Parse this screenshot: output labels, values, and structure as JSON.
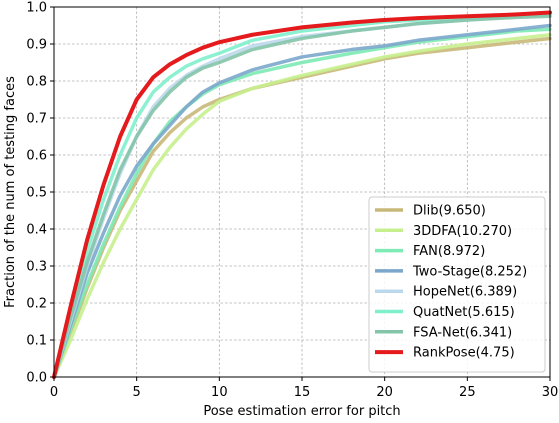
{
  "chart_data": {
    "type": "line",
    "title": "",
    "xlabel": "Pose estimation error for pitch",
    "ylabel": "Fraction of the num of testing faces",
    "xlim": [
      0,
      30
    ],
    "ylim": [
      0,
      1.0
    ],
    "xticks": [
      0,
      5,
      10,
      15,
      20,
      25,
      30
    ],
    "xtick_labels": [
      "0",
      "5",
      "10",
      "15",
      "20",
      "25",
      "30"
    ],
    "yticks": [
      0,
      0.1,
      0.2,
      0.3,
      0.4,
      0.5,
      0.6,
      0.7,
      0.8,
      0.9,
      1.0
    ],
    "ytick_labels": [
      "0.0",
      "0.1",
      "0.2",
      "0.3",
      "0.4",
      "0.5",
      "0.6",
      "0.7",
      "0.8",
      "0.9",
      "1.0"
    ],
    "grid": true,
    "legend_position": "lower-right",
    "x": [
      0,
      1,
      2,
      3,
      4,
      5,
      6,
      7,
      8,
      9,
      10,
      12,
      15,
      18,
      20,
      22,
      25,
      28,
      30
    ],
    "series": [
      {
        "name": "Dlib(9.650)",
        "color": "#c8b878",
        "values": [
          0,
          0.12,
          0.24,
          0.35,
          0.45,
          0.53,
          0.61,
          0.66,
          0.7,
          0.73,
          0.75,
          0.78,
          0.81,
          0.84,
          0.86,
          0.875,
          0.89,
          0.905,
          0.915
        ]
      },
      {
        "name": "3DDFA(10.270)",
        "color": "#c6f08e",
        "values": [
          0,
          0.1,
          0.21,
          0.31,
          0.4,
          0.48,
          0.56,
          0.62,
          0.67,
          0.71,
          0.745,
          0.78,
          0.815,
          0.845,
          0.865,
          0.88,
          0.9,
          0.915,
          0.925
        ]
      },
      {
        "name": "FAN(8.972)",
        "color": "#7eeab4",
        "values": [
          0,
          0.13,
          0.25,
          0.36,
          0.46,
          0.55,
          0.63,
          0.69,
          0.73,
          0.765,
          0.79,
          0.82,
          0.85,
          0.875,
          0.89,
          0.905,
          0.92,
          0.935,
          0.94
        ]
      },
      {
        "name": "Two-Stage(8.252)",
        "color": "#7ba7cc",
        "values": [
          0,
          0.14,
          0.28,
          0.39,
          0.49,
          0.57,
          0.63,
          0.68,
          0.73,
          0.77,
          0.795,
          0.83,
          0.865,
          0.885,
          0.895,
          0.91,
          0.925,
          0.94,
          0.95
        ]
      },
      {
        "name": "HopeNet(6.389)",
        "color": "#bcd8ec",
        "values": [
          0,
          0.15,
          0.3,
          0.43,
          0.55,
          0.65,
          0.73,
          0.78,
          0.815,
          0.84,
          0.86,
          0.895,
          0.92,
          0.935,
          0.945,
          0.955,
          0.965,
          0.975,
          0.98
        ]
      },
      {
        "name": "QuatNet(5.615)",
        "color": "#7ef0cc",
        "values": [
          0,
          0.18,
          0.34,
          0.48,
          0.6,
          0.7,
          0.77,
          0.81,
          0.84,
          0.86,
          0.875,
          0.91,
          0.935,
          0.95,
          0.96,
          0.965,
          0.97,
          0.975,
          0.98
        ]
      },
      {
        "name": "FSA-Net(6.341)",
        "color": "#84c4a8",
        "values": [
          0,
          0.16,
          0.31,
          0.44,
          0.56,
          0.65,
          0.72,
          0.77,
          0.81,
          0.835,
          0.85,
          0.885,
          0.915,
          0.935,
          0.945,
          0.955,
          0.965,
          0.972,
          0.975
        ]
      },
      {
        "name": "RankPose(4.75)",
        "color": "#e41a1c",
        "values": [
          0,
          0.19,
          0.37,
          0.52,
          0.65,
          0.75,
          0.81,
          0.845,
          0.87,
          0.89,
          0.905,
          0.925,
          0.945,
          0.958,
          0.965,
          0.97,
          0.975,
          0.98,
          0.985
        ]
      }
    ]
  }
}
